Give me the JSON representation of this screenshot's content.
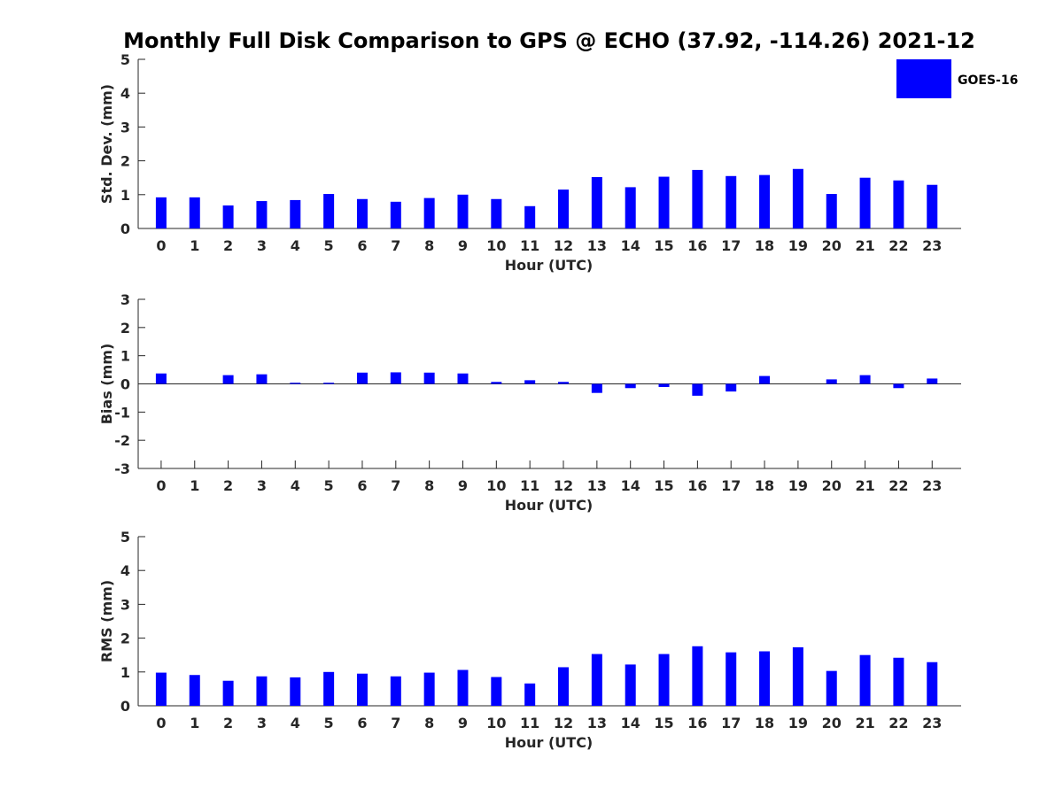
{
  "title": "Monthly Full Disk Comparison to GPS @ ECHO (37.92, -114.26) 2021-12",
  "legend": {
    "label": "GOES-16",
    "color": "#0000ff"
  },
  "chart_data": [
    {
      "type": "bar",
      "xlabel": "Hour (UTC)",
      "ylabel": "Std. Dev. (mm)",
      "ylim": [
        0,
        5
      ],
      "yticks": [
        0,
        1,
        2,
        3,
        4,
        5
      ],
      "categories": [
        "0",
        "1",
        "2",
        "3",
        "4",
        "5",
        "6",
        "7",
        "8",
        "9",
        "10",
        "11",
        "12",
        "13",
        "14",
        "15",
        "16",
        "17",
        "18",
        "19",
        "20",
        "21",
        "22",
        "23"
      ],
      "series": [
        {
          "name": "GOES-16",
          "color": "#0000ff",
          "values": [
            0.92,
            0.92,
            0.68,
            0.81,
            0.84,
            1.02,
            0.87,
            0.79,
            0.9,
            1.0,
            0.87,
            0.66,
            1.15,
            1.52,
            1.22,
            1.53,
            1.73,
            1.55,
            1.58,
            1.76,
            1.02,
            1.5,
            1.42,
            1.29
          ]
        }
      ]
    },
    {
      "type": "bar",
      "xlabel": "Hour (UTC)",
      "ylabel": "Bias (mm)",
      "ylim": [
        -3,
        3
      ],
      "yticks": [
        -3,
        -2,
        -1,
        0,
        1,
        2,
        3
      ],
      "categories": [
        "0",
        "1",
        "2",
        "3",
        "4",
        "5",
        "6",
        "7",
        "8",
        "9",
        "10",
        "11",
        "12",
        "13",
        "14",
        "15",
        "16",
        "17",
        "18",
        "19",
        "20",
        "21",
        "22",
        "23"
      ],
      "series": [
        {
          "name": "GOES-16",
          "color": "#0000ff",
          "values": [
            0.37,
            0.0,
            0.31,
            0.34,
            0.04,
            0.04,
            0.4,
            0.41,
            0.4,
            0.37,
            0.07,
            0.13,
            0.07,
            -0.32,
            -0.15,
            -0.11,
            -0.42,
            -0.27,
            0.28,
            0.0,
            0.16,
            0.31,
            -0.15,
            0.19
          ]
        }
      ]
    },
    {
      "type": "bar",
      "xlabel": "Hour (UTC)",
      "ylabel": "RMS (mm)",
      "ylim": [
        0,
        5
      ],
      "yticks": [
        0,
        1,
        2,
        3,
        4,
        5
      ],
      "categories": [
        "0",
        "1",
        "2",
        "3",
        "4",
        "5",
        "6",
        "7",
        "8",
        "9",
        "10",
        "11",
        "12",
        "13",
        "14",
        "15",
        "16",
        "17",
        "18",
        "19",
        "20",
        "21",
        "22",
        "23"
      ],
      "series": [
        {
          "name": "GOES-16",
          "color": "#0000ff",
          "values": [
            0.98,
            0.91,
            0.74,
            0.87,
            0.84,
            1.0,
            0.95,
            0.87,
            0.98,
            1.06,
            0.85,
            0.66,
            1.14,
            1.53,
            1.22,
            1.53,
            1.76,
            1.58,
            1.61,
            1.73,
            1.03,
            1.5,
            1.42,
            1.29
          ]
        }
      ]
    }
  ]
}
